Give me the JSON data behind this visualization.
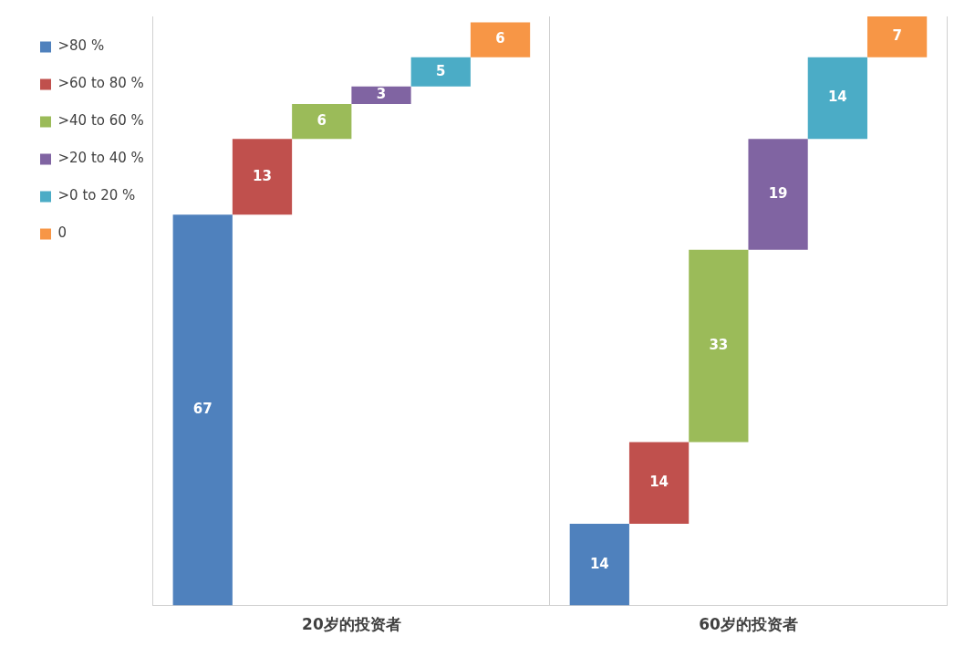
{
  "chart_data": {
    "type": "bar",
    "categories": [
      "20岁的投资者",
      "60岁的投资者"
    ],
    "stacked": true,
    "series": [
      {
        "name": ">80 %",
        "color": "#4f81bd",
        "values": [
          67,
          14
        ]
      },
      {
        "name": ">60 to 80 %",
        "color": "#c0504d",
        "values": [
          13,
          14
        ]
      },
      {
        "name": ">40 to 60 %",
        "color": "#9bbb59",
        "values": [
          6,
          33
        ]
      },
      {
        "name": ">20 to 40 %",
        "color": "#8064a2",
        "values": [
          3,
          19
        ]
      },
      {
        "name": ">0 to 20 %",
        "color": "#4bacc6",
        "values": [
          5,
          14
        ]
      },
      {
        "name": "0",
        "color": "#f79646",
        "values": [
          6,
          7
        ]
      }
    ],
    "data_labels": true,
    "legend": "top left",
    "grid": "x"
  }
}
